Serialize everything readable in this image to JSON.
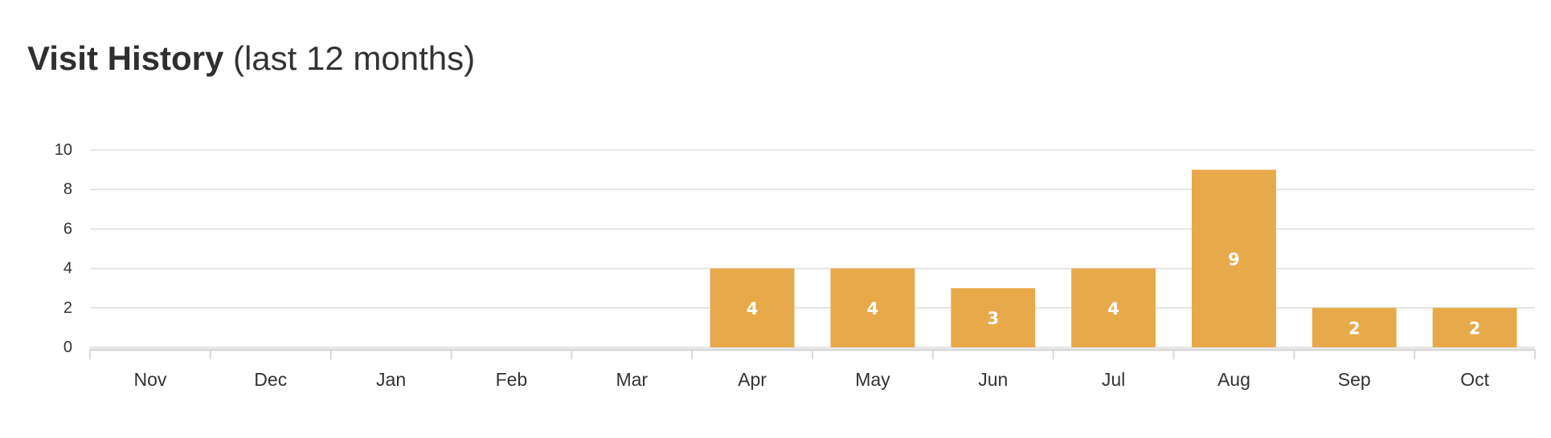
{
  "header": {
    "title": "Visit History",
    "subtitle": "(last 12 months)"
  },
  "chart_data": {
    "type": "bar",
    "title": "Visit History",
    "subtitle": "(last 12 months)",
    "xlabel": "",
    "ylabel": "",
    "categories": [
      "Nov",
      "Dec",
      "Jan",
      "Feb",
      "Mar",
      "Apr",
      "May",
      "Jun",
      "Jul",
      "Aug",
      "Sep",
      "Oct"
    ],
    "values": [
      0,
      0,
      0,
      0,
      0,
      4,
      4,
      3,
      4,
      9,
      2,
      2
    ],
    "ylim": [
      0,
      10
    ],
    "yticks": [
      0,
      2,
      4,
      6,
      8,
      10
    ],
    "grid": true,
    "bar_color": "#E8A94A",
    "grid_color": "#DDDDDD",
    "axis_color": "#D8D8D8",
    "data_label_color": "#FFFFFF"
  }
}
